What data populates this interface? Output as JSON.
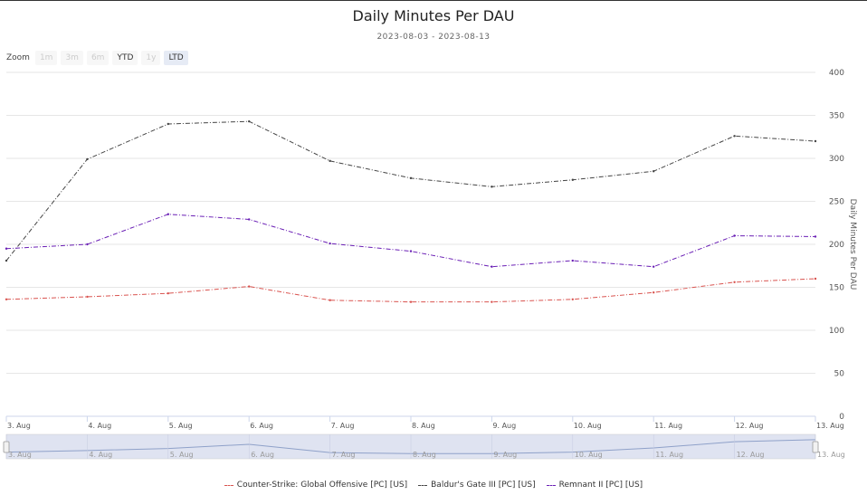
{
  "title": "Daily Minutes Per DAU",
  "subtitle": "2023-08-03 - 2023-08-13",
  "zoom": {
    "label": "Zoom",
    "buttons": [
      {
        "label": "1m",
        "state": "disabled"
      },
      {
        "label": "3m",
        "state": "disabled"
      },
      {
        "label": "6m",
        "state": "disabled"
      },
      {
        "label": "YTD",
        "state": "enabled"
      },
      {
        "label": "1y",
        "state": "disabled"
      },
      {
        "label": "LTD",
        "state": "active"
      }
    ]
  },
  "chart_data": {
    "type": "line",
    "title": "Daily Minutes Per DAU",
    "subtitle": "2023-08-03 - 2023-08-13",
    "ylabel": "Daily Minutes Per DAU",
    "xlabel": "",
    "ylim": [
      0,
      400
    ],
    "yticks": [
      0,
      50,
      100,
      150,
      200,
      250,
      300,
      350,
      400
    ],
    "y_axis_side": "right",
    "grid": true,
    "legend_position": "bottom",
    "x": [
      "3. Aug",
      "4. Aug",
      "5. Aug",
      "6. Aug",
      "7. Aug",
      "8. Aug",
      "9. Aug",
      "10. Aug",
      "11. Aug",
      "12. Aug",
      "13. Aug"
    ],
    "series": [
      {
        "name": "Counter-Strike: Global Offensive [PC] [US]",
        "color": "#d9534f",
        "values": [
          136,
          139,
          143,
          151,
          135,
          133,
          133,
          136,
          144,
          156,
          160
        ]
      },
      {
        "name": "Baldur's Gate III [PC] [US]",
        "color": "#444444",
        "values": [
          181,
          299,
          340,
          343,
          297,
          277,
          267,
          275,
          285,
          326,
          320
        ]
      },
      {
        "name": "Remnant II [PC] [US]",
        "color": "#6a1fb5",
        "values": [
          195,
          200,
          235,
          229,
          201,
          192,
          174,
          181,
          174,
          210,
          209
        ]
      }
    ]
  }
}
